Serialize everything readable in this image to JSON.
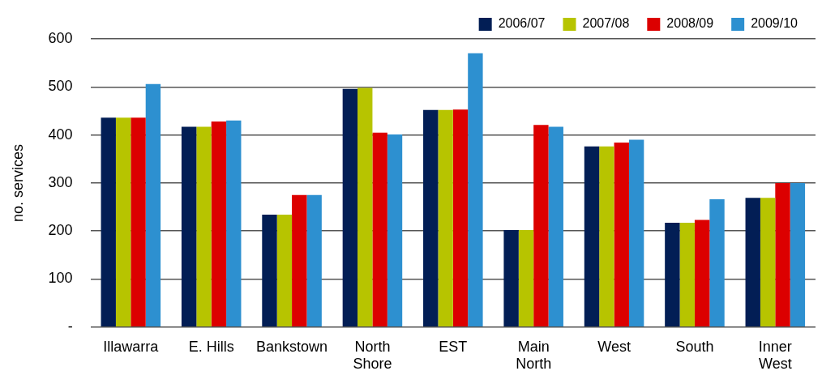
{
  "chart_data": {
    "type": "bar",
    "ylabel": "no. services",
    "categories": [
      "Illawarra",
      "E. Hills",
      "Bankstown",
      "North Shore",
      "EST",
      "Main North",
      "West",
      "South",
      "Inner West"
    ],
    "series": [
      {
        "name": "2006/07",
        "color": "#021e55",
        "values": [
          436,
          417,
          234,
          496,
          452,
          202,
          376,
          217,
          269
        ]
      },
      {
        "name": "2007/08",
        "color": "#b7c400",
        "values": [
          436,
          417,
          234,
          498,
          452,
          202,
          376,
          217,
          269
        ]
      },
      {
        "name": "2008/09",
        "color": "#dc0000",
        "values": [
          436,
          428,
          275,
          405,
          453,
          421,
          384,
          223,
          300
        ]
      },
      {
        "name": "2009/10",
        "color": "#2d90d0",
        "values": [
          506,
          430,
          275,
          401,
          570,
          417,
          390,
          266,
          300
        ]
      }
    ],
    "ylim": [
      0,
      600
    ],
    "yticks": [
      {
        "value": 0,
        "label": "-"
      },
      100,
      200,
      300,
      400,
      500,
      600
    ],
    "grid": "y",
    "legend": "top right"
  }
}
